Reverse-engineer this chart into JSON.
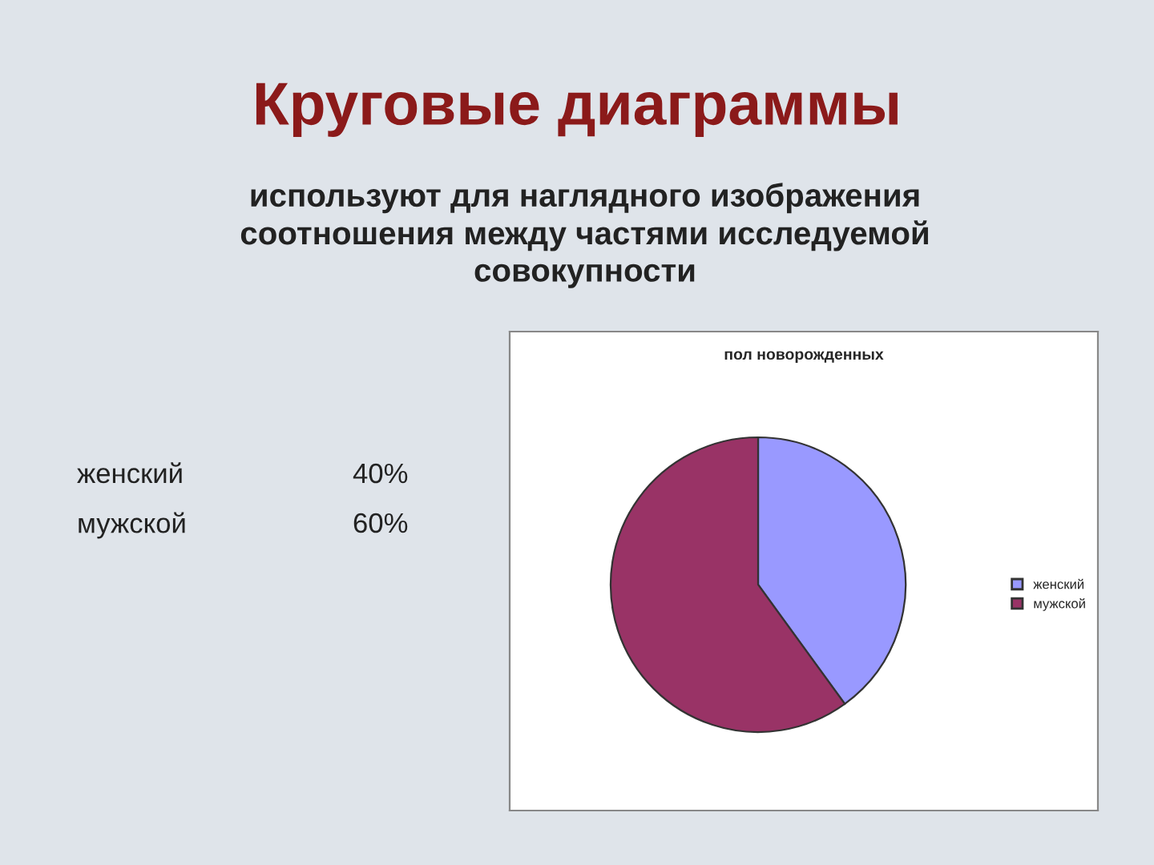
{
  "chart_data": {
    "type": "pie",
    "title": "Круговые диаграммы",
    "subtitle": "используют для наглядного изображения\nсоотношения между частями исследуемой\nсовокупности",
    "annotations": [
      "пол новорожденных",
      "женский",
      "40%",
      "мужской",
      "60%"
    ],
    "categories": [
      "женский",
      "мужской"
    ],
    "values": [
      40,
      60
    ],
    "colors": [
      "#9999ff",
      "#993366"
    ],
    "legend": "right"
  }
}
